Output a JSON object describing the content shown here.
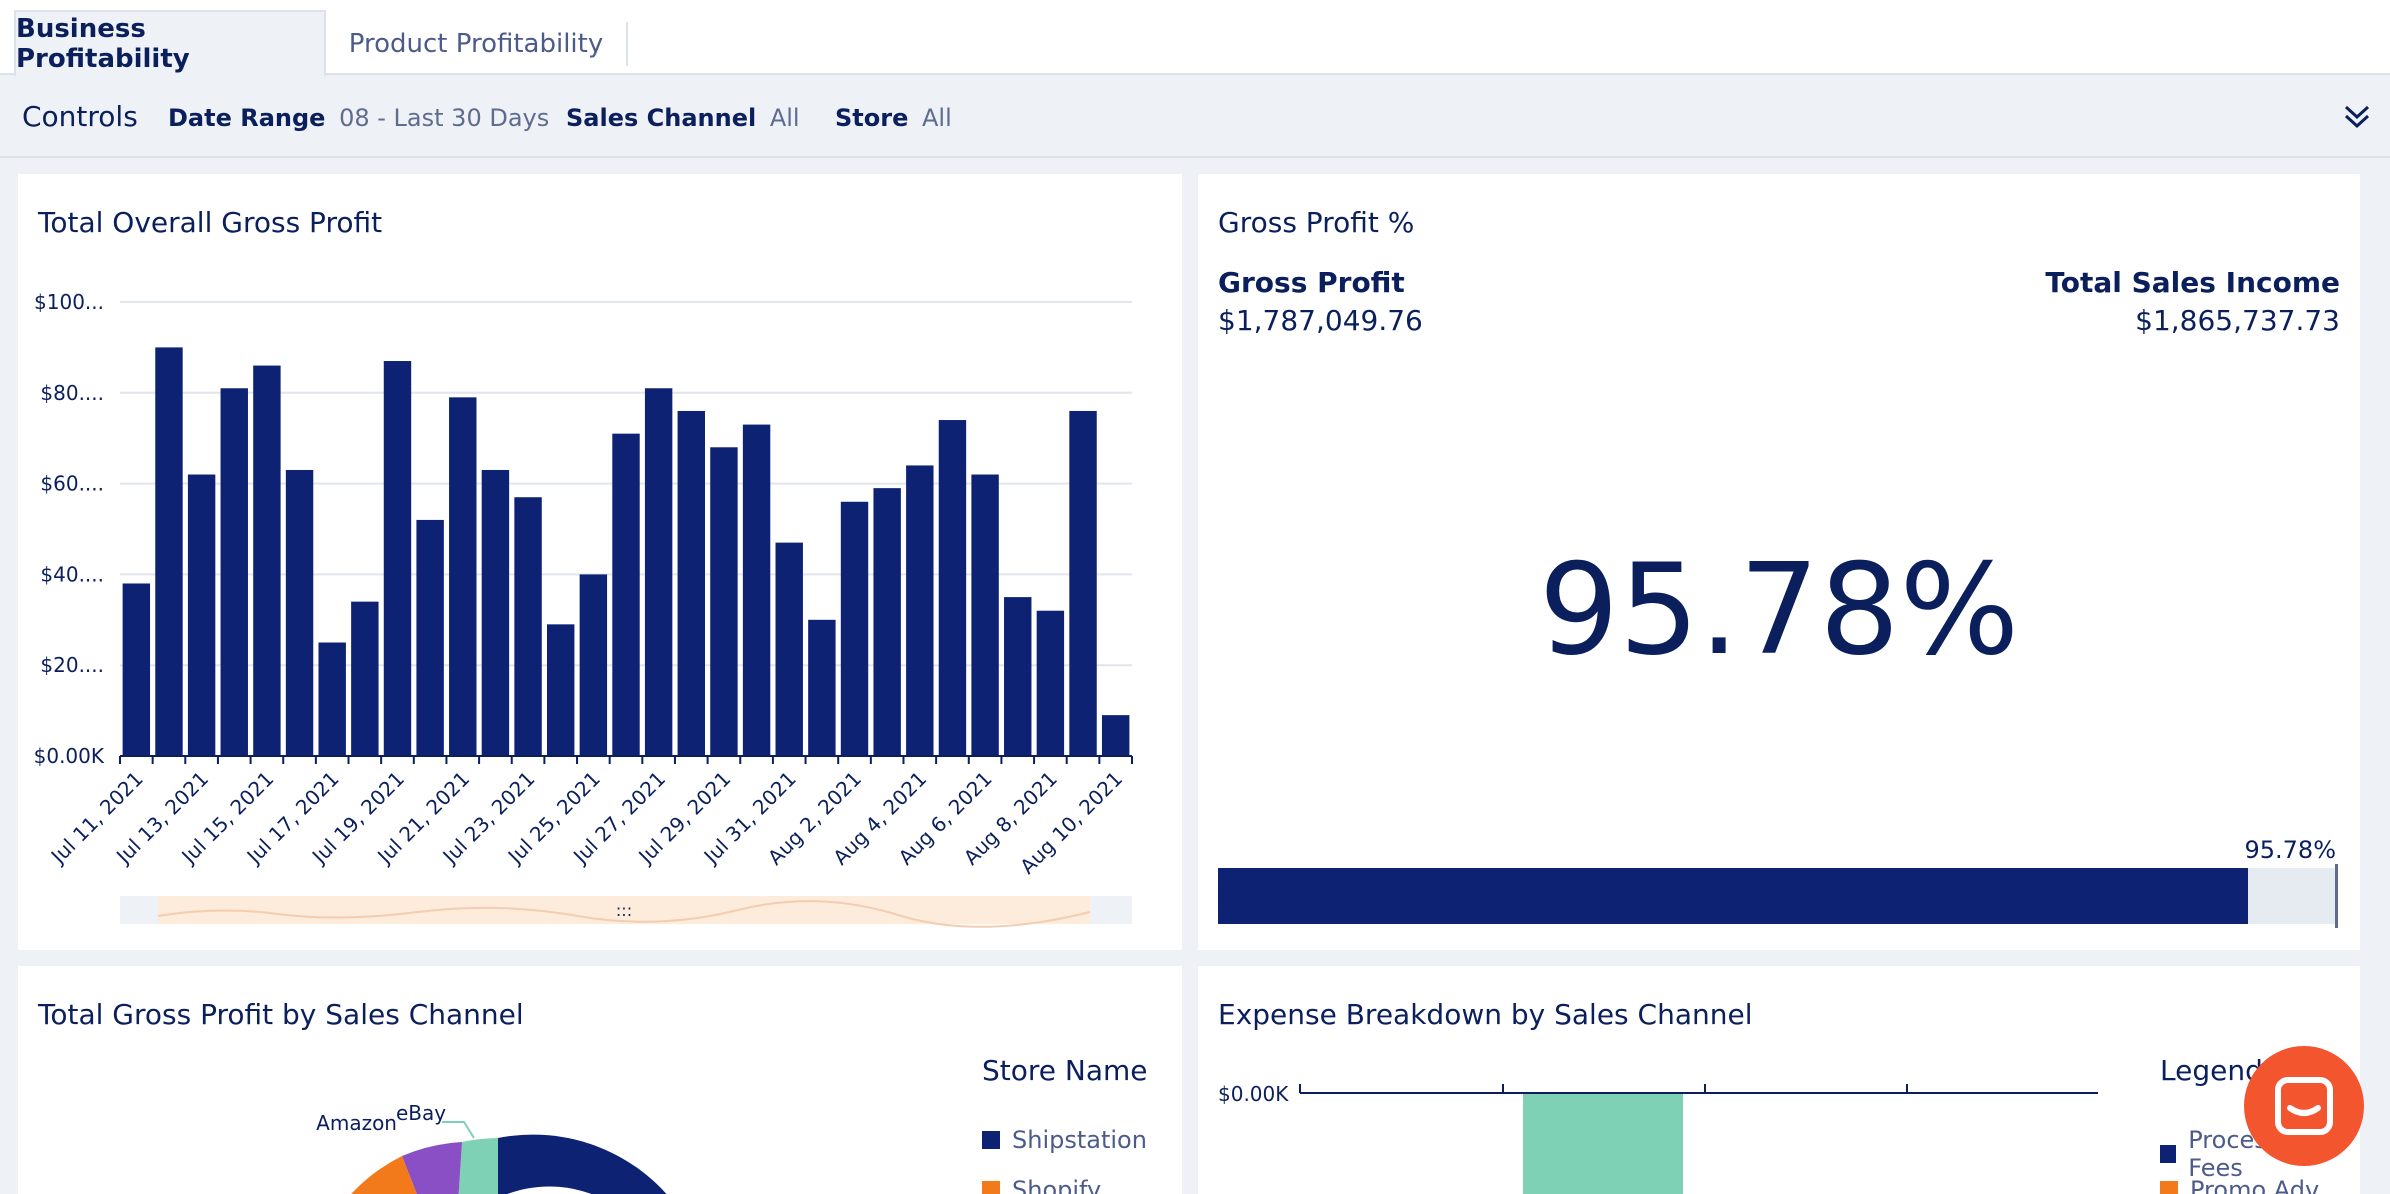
{
  "tabs": [
    {
      "label": "Business Profitability",
      "active": true
    },
    {
      "label": "Product Profitability",
      "active": false
    }
  ],
  "controls": {
    "title": "Controls",
    "items": [
      {
        "key": "Date Range",
        "value": "08 - Last 30 Days"
      },
      {
        "key": "Sales Channel",
        "value": "All"
      },
      {
        "key": "Store",
        "value": "All"
      }
    ]
  },
  "gross_profit_chart": {
    "title": "Total Overall Gross Profit",
    "y_ticks": [
      "$0.00K",
      "$20....",
      "$40....",
      "$60....",
      "$80....",
      "$100..."
    ],
    "x_ticks": [
      "Jul 11, 2021",
      "Jul 13, 2021",
      "Jul 15, 2021",
      "Jul 17, 2021",
      "Jul 19, 2021",
      "Jul 21, 2021",
      "Jul 23, 2021",
      "Jul 25, 2021",
      "Jul 27, 2021",
      "Jul 29, 2021",
      "Jul 31, 2021",
      "Aug 2, 2021",
      "Aug 4, 2021",
      "Aug 6, 2021",
      "Aug 8, 2021",
      "Aug 10, 2021"
    ],
    "scroll_handle_label": ":::"
  },
  "chart_data": {
    "type": "bar",
    "title": "Total Overall Gross Profit",
    "ylabel": "",
    "xlabel": "",
    "ylim": [
      0,
      100
    ],
    "y_unit": "$K",
    "categories": [
      "Jul 11, 2021",
      "Jul 12, 2021",
      "Jul 13, 2021",
      "Jul 14, 2021",
      "Jul 15, 2021",
      "Jul 16, 2021",
      "Jul 17, 2021",
      "Jul 18, 2021",
      "Jul 19, 2021",
      "Jul 20, 2021",
      "Jul 21, 2021",
      "Jul 22, 2021",
      "Jul 23, 2021",
      "Jul 24, 2021",
      "Jul 25, 2021",
      "Jul 26, 2021",
      "Jul 27, 2021",
      "Jul 28, 2021",
      "Jul 29, 2021",
      "Jul 30, 2021",
      "Jul 31, 2021",
      "Aug 1, 2021",
      "Aug 2, 2021",
      "Aug 3, 2021",
      "Aug 4, 2021",
      "Aug 5, 2021",
      "Aug 6, 2021",
      "Aug 7, 2021",
      "Aug 8, 2021",
      "Aug 9, 2021",
      "Aug 10, 2021"
    ],
    "values": [
      38,
      90,
      62,
      81,
      86,
      63,
      25,
      34,
      87,
      52,
      79,
      63,
      57,
      29,
      40,
      71,
      81,
      76,
      68,
      73,
      47,
      30,
      56,
      59,
      64,
      74,
      62,
      35,
      32,
      76,
      9
    ],
    "grid": true,
    "bar_color": "#0d2272"
  },
  "gross_profit_pct": {
    "title": "Gross Profit %",
    "gp_label": "Gross Profit",
    "gp_value": "$1,787,049.76",
    "tsi_label": "Total Sales Income",
    "tsi_value": "$1,865,737.73",
    "big_value": "95.78%",
    "bar_label": "95.78%",
    "progress": 0.9578
  },
  "sales_channel": {
    "title": "Total Gross Profit by Sales Channel",
    "legend_title": "Store Name",
    "legend": [
      {
        "label": "Shipstation",
        "color": "#0d2272"
      },
      {
        "label": "Shopify",
        "color": "#f27a1a"
      }
    ],
    "slice_labels": [
      "Amazon",
      "eBay"
    ]
  },
  "expense": {
    "title": "Expense Breakdown by Sales Channel",
    "axis_label": "$0.00K",
    "legend_title": "Legend",
    "legend": [
      {
        "label": "Processing Fees",
        "color": "#0d2272"
      },
      {
        "label": "Promo Adv",
        "color": "#f27a1a"
      }
    ]
  },
  "colors": {
    "navy": "#0d2272",
    "orange": "#f27a1a",
    "purple": "#8a4fc4",
    "mint": "#7fd1b5",
    "chat": "#f3552f"
  }
}
